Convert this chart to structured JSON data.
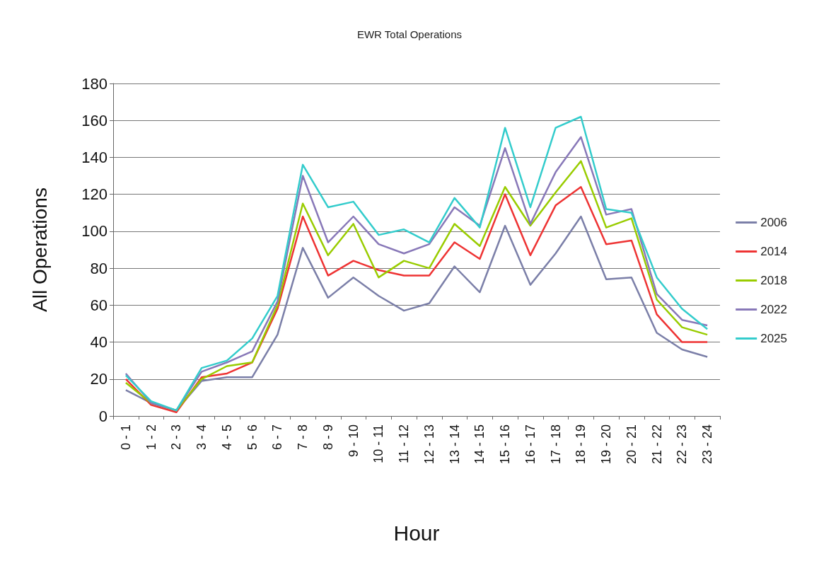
{
  "chart_data": {
    "type": "line",
    "title": "EWR Total Operations",
    "xlabel": "Hour",
    "ylabel": "All Operations",
    "categories": [
      "0 - 1",
      "1 - 2",
      "2 - 3",
      "3 - 4",
      "4 - 5",
      "5 - 6",
      "6 - 7",
      "7 - 8",
      "8 - 9",
      "9 - 10",
      "10 - 11",
      "11 - 12",
      "12 - 13",
      "13 - 14",
      "14 - 15",
      "15 - 16",
      "16 - 17",
      "17 - 18",
      "18 - 19",
      "19 - 20",
      "20 - 21",
      "21 - 22",
      "22 - 23",
      "23 - 24"
    ],
    "series": [
      {
        "name": "2006",
        "color": "#7b7fa8",
        "values": [
          14,
          7,
          3,
          19,
          21,
          21,
          44,
          91,
          64,
          75,
          65,
          57,
          61,
          81,
          67,
          103,
          71,
          88,
          108,
          74,
          75,
          45,
          36,
          32
        ]
      },
      {
        "name": "2014",
        "color": "#ee3333",
        "values": [
          20,
          6,
          2,
          21,
          23,
          29,
          58,
          108,
          76,
          84,
          79,
          76,
          76,
          94,
          85,
          120,
          87,
          114,
          124,
          93,
          95,
          55,
          40,
          40
        ]
      },
      {
        "name": "2018",
        "color": "#99cc00",
        "values": [
          18,
          7,
          3,
          20,
          27,
          29,
          60,
          115,
          87,
          104,
          75,
          84,
          80,
          104,
          92,
          124,
          103,
          121,
          138,
          102,
          107,
          63,
          48,
          44
        ]
      },
      {
        "name": "2022",
        "color": "#8878b8",
        "values": [
          23,
          7,
          3,
          24,
          29,
          35,
          62,
          130,
          94,
          108,
          93,
          88,
          93,
          113,
          103,
          145,
          104,
          132,
          151,
          109,
          112,
          66,
          52,
          49
        ]
      },
      {
        "name": "2025",
        "color": "#33cccc",
        "values": [
          22,
          8,
          3,
          26,
          30,
          42,
          65,
          136,
          113,
          116,
          98,
          101,
          94,
          118,
          102,
          156,
          113,
          156,
          162,
          112,
          110,
          75,
          58,
          47
        ]
      }
    ],
    "ylim": [
      0,
      180
    ],
    "yticks": [
      0,
      20,
      40,
      60,
      80,
      100,
      120,
      140,
      160,
      180
    ],
    "grid": "y",
    "legend": "right",
    "marker": "none",
    "line_style": "solid"
  }
}
